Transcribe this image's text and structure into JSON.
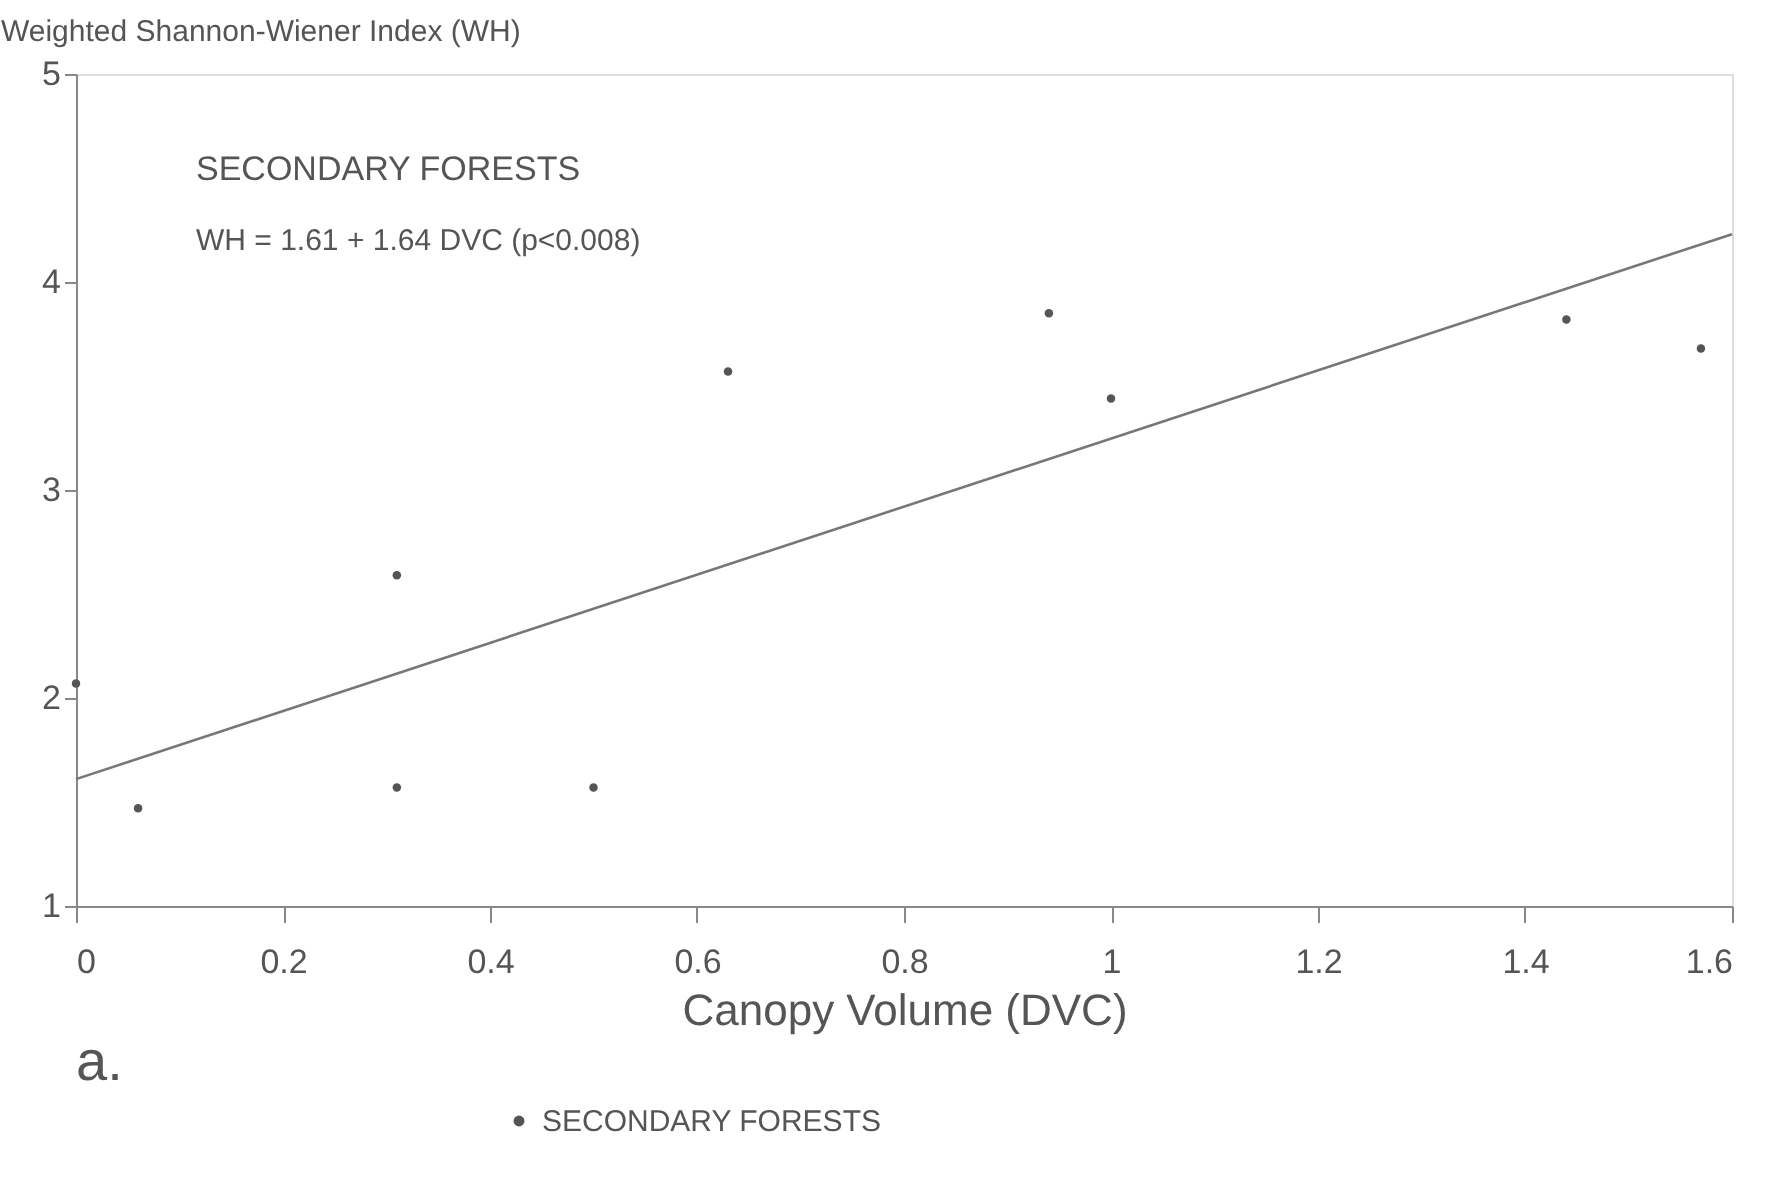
{
  "chart_data": {
    "type": "scatter",
    "xlabel": "Canopy Volume (DVC)",
    "ylabel": "Weighted Shannon-Wiener Index (WH)",
    "annotations": [
      "SECONDARY FORESTS",
      "WH = 1.61 + 1.64 DVC (p<0.008)",
      "a."
    ],
    "xlim": [
      0,
      1.6
    ],
    "xticks": [
      0,
      0.2,
      0.4,
      0.6,
      0.8,
      1,
      1.2,
      1.4,
      1.6
    ],
    "ylim": [
      1,
      5
    ],
    "yticks": [
      1,
      2,
      3,
      4,
      5
    ],
    "grid": false,
    "legend": "bottom",
    "marker": "circle",
    "series": [
      {
        "name": "SECONDARY FORESTS",
        "color": "#555555",
        "x": [
          0,
          0.06,
          0.31,
          0.31,
          0.5,
          0.63,
          0.94,
          1.0,
          1.44,
          1.57
        ],
        "values": [
          2.07,
          1.47,
          2.59,
          1.57,
          1.57,
          3.57,
          3.85,
          3.44,
          3.82,
          3.68
        ]
      },
      {
        "type": "line",
        "color": "#777777",
        "line_style": "solid",
        "marker": "none",
        "x": [
          0,
          1.6
        ],
        "values": [
          1.61,
          4.23
        ]
      }
    ]
  }
}
